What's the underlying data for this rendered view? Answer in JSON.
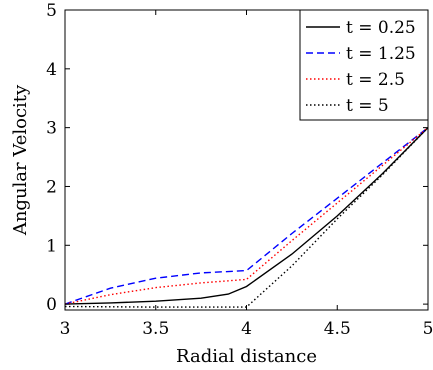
{
  "chart_data": {
    "type": "line",
    "xlabel": "Radial distance",
    "ylabel": "Angular Velocity",
    "xlim": [
      3,
      5
    ],
    "ylim": [
      -0.1,
      5
    ],
    "xticks": [
      "3",
      "3.5",
      "4",
      "4.5",
      "5"
    ],
    "yticks": [
      "0",
      "1",
      "2",
      "3",
      "4",
      "5"
    ],
    "grid": false,
    "legend_position": "top-right",
    "series": [
      {
        "name": "t = 0.25",
        "color": "#000000",
        "style": "solid",
        "x": [
          3.0,
          3.25,
          3.5,
          3.75,
          3.9,
          4.0,
          4.25,
          4.5,
          4.75,
          5.0
        ],
        "y": [
          0.0,
          0.02,
          0.05,
          0.1,
          0.17,
          0.3,
          0.85,
          1.5,
          2.22,
          3.0
        ]
      },
      {
        "name": "t = 1.25",
        "color": "#0000ff",
        "style": "dashed",
        "x": [
          3.0,
          3.25,
          3.5,
          3.75,
          4.0,
          4.25,
          4.5,
          4.75,
          5.0
        ],
        "y": [
          0.0,
          0.27,
          0.44,
          0.53,
          0.57,
          1.2,
          1.8,
          2.4,
          3.0
        ]
      },
      {
        "name": "t = 2.5",
        "color": "#ff0000",
        "style": "dotted",
        "x": [
          3.0,
          3.25,
          3.5,
          3.75,
          4.0,
          4.25,
          4.5,
          4.75,
          5.0
        ],
        "y": [
          0.0,
          0.16,
          0.28,
          0.36,
          0.42,
          1.08,
          1.72,
          2.36,
          3.0
        ]
      },
      {
        "name": "t = 5",
        "color": "#000000",
        "style": "dotted",
        "x": [
          3.0,
          3.5,
          3.8,
          4.0,
          4.25,
          4.5,
          4.75,
          5.0
        ],
        "y": [
          -0.04,
          -0.05,
          -0.05,
          -0.05,
          0.65,
          1.45,
          2.2,
          3.0
        ]
      }
    ]
  }
}
